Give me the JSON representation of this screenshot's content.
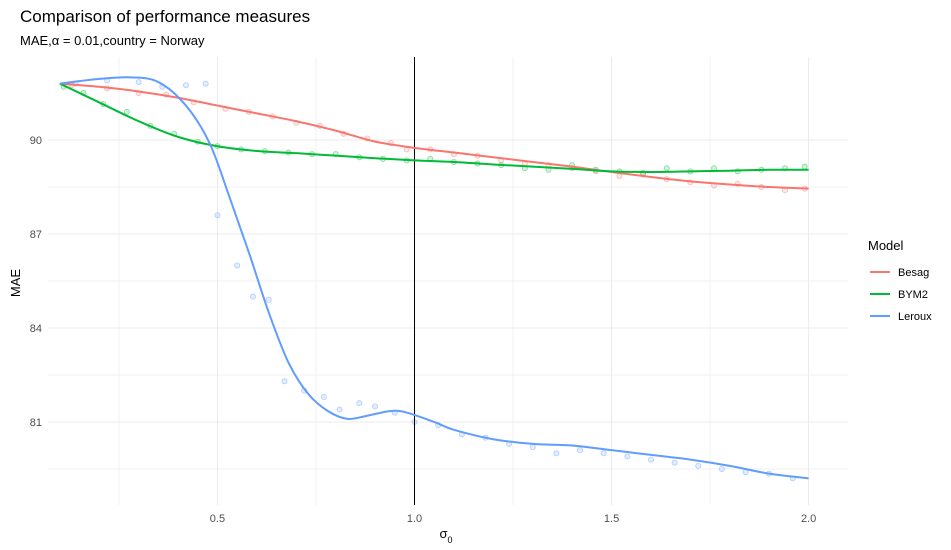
{
  "chart_data": {
    "type": "line",
    "title": "Comparison of performance measures",
    "subtitle": "MAE,α = 0.01,country = Norway",
    "xlabel": "σ",
    "xlabel_subscript": "0",
    "ylabel": "MAE",
    "xlim": [
      0.07,
      2.1
    ],
    "ylim": [
      78.35,
      92.65
    ],
    "x_ticks": [
      0.5,
      1.0,
      1.5,
      2.0
    ],
    "x_tick_labels": [
      "0.5",
      "1.0",
      "1.5",
      "2.0"
    ],
    "y_ticks": [
      81,
      84,
      87,
      90
    ],
    "y_tick_labels": [
      "81",
      "84",
      "87",
      "90"
    ],
    "vline_x": 1.0,
    "grid": true,
    "legend_title": "Model",
    "legend_position": "right",
    "series": [
      {
        "name": "Besag",
        "color": "#F8766D",
        "x": [
          0.1,
          0.2,
          0.3,
          0.4,
          0.5,
          0.6,
          0.7,
          0.8,
          0.9,
          1.0,
          1.1,
          1.2,
          1.3,
          1.4,
          1.5,
          1.6,
          1.7,
          1.8,
          1.9,
          2.0
        ],
        "y": [
          91.8,
          91.7,
          91.55,
          91.35,
          91.1,
          90.85,
          90.6,
          90.3,
          89.95,
          89.75,
          89.6,
          89.45,
          89.3,
          89.15,
          88.98,
          88.82,
          88.68,
          88.58,
          88.5,
          88.45
        ],
        "points": [
          [
            0.13,
            91.75
          ],
          [
            0.22,
            91.65
          ],
          [
            0.3,
            91.5
          ],
          [
            0.37,
            91.45
          ],
          [
            0.44,
            91.2
          ],
          [
            0.52,
            91.0
          ],
          [
            0.58,
            90.9
          ],
          [
            0.64,
            90.75
          ],
          [
            0.7,
            90.55
          ],
          [
            0.76,
            90.45
          ],
          [
            0.82,
            90.2
          ],
          [
            0.88,
            90.05
          ],
          [
            0.94,
            89.9
          ],
          [
            0.98,
            89.7
          ],
          [
            1.04,
            89.7
          ],
          [
            1.1,
            89.55
          ],
          [
            1.16,
            89.5
          ],
          [
            1.22,
            89.35
          ],
          [
            1.28,
            89.25
          ],
          [
            1.34,
            89.2
          ],
          [
            1.4,
            89.1
          ],
          [
            1.46,
            89.0
          ],
          [
            1.52,
            88.85
          ],
          [
            1.58,
            88.9
          ],
          [
            1.64,
            88.75
          ],
          [
            1.7,
            88.65
          ],
          [
            1.76,
            88.55
          ],
          [
            1.82,
            88.6
          ],
          [
            1.88,
            88.5
          ],
          [
            1.94,
            88.4
          ],
          [
            1.99,
            88.45
          ]
        ]
      },
      {
        "name": "BYM2",
        "color": "#00BA38",
        "x": [
          0.1,
          0.2,
          0.3,
          0.4,
          0.5,
          0.6,
          0.7,
          0.8,
          0.9,
          1.0,
          1.1,
          1.2,
          1.3,
          1.4,
          1.5,
          1.6,
          1.7,
          1.8,
          1.9,
          2.0
        ],
        "y": [
          91.8,
          91.2,
          90.6,
          90.1,
          89.8,
          89.65,
          89.58,
          89.5,
          89.42,
          89.35,
          89.3,
          89.22,
          89.15,
          89.08,
          89.0,
          88.98,
          89.0,
          89.02,
          89.05,
          89.05
        ],
        "points": [
          [
            0.11,
            91.7
          ],
          [
            0.16,
            91.5
          ],
          [
            0.21,
            91.15
          ],
          [
            0.27,
            90.9
          ],
          [
            0.33,
            90.45
          ],
          [
            0.39,
            90.2
          ],
          [
            0.45,
            89.95
          ],
          [
            0.5,
            89.8
          ],
          [
            0.56,
            89.7
          ],
          [
            0.62,
            89.65
          ],
          [
            0.68,
            89.6
          ],
          [
            0.74,
            89.55
          ],
          [
            0.8,
            89.55
          ],
          [
            0.86,
            89.45
          ],
          [
            0.92,
            89.4
          ],
          [
            0.98,
            89.35
          ],
          [
            1.04,
            89.4
          ],
          [
            1.1,
            89.3
          ],
          [
            1.16,
            89.25
          ],
          [
            1.22,
            89.2
          ],
          [
            1.28,
            89.1
          ],
          [
            1.34,
            89.05
          ],
          [
            1.4,
            89.2
          ],
          [
            1.46,
            89.05
          ],
          [
            1.52,
            89.0
          ],
          [
            1.58,
            88.95
          ],
          [
            1.64,
            89.1
          ],
          [
            1.7,
            89.0
          ],
          [
            1.76,
            89.1
          ],
          [
            1.82,
            89.0
          ],
          [
            1.88,
            89.05
          ],
          [
            1.94,
            89.1
          ],
          [
            1.99,
            89.15
          ]
        ]
      },
      {
        "name": "Leroux",
        "color": "#619CFF",
        "x": [
          0.1,
          0.2,
          0.28,
          0.35,
          0.42,
          0.48,
          0.53,
          0.58,
          0.63,
          0.68,
          0.73,
          0.78,
          0.83,
          0.88,
          0.94,
          0.98,
          1.05,
          1.1,
          1.2,
          1.3,
          1.4,
          1.5,
          1.6,
          1.7,
          1.8,
          1.9,
          2.0
        ],
        "y": [
          91.8,
          91.95,
          92.0,
          91.85,
          91.1,
          89.9,
          88.2,
          86.4,
          84.5,
          82.9,
          81.9,
          81.35,
          81.1,
          81.2,
          81.35,
          81.3,
          81.0,
          80.75,
          80.45,
          80.3,
          80.25,
          80.1,
          79.95,
          79.8,
          79.6,
          79.35,
          79.2
        ]
      }
    ],
    "scatter_leroux": [
      [
        0.14,
        91.8
      ],
      [
        0.22,
        91.9
      ],
      [
        0.3,
        91.85
      ],
      [
        0.36,
        91.7
      ],
      [
        0.42,
        91.75
      ],
      [
        0.47,
        91.8
      ],
      [
        0.5,
        87.6
      ],
      [
        0.55,
        86.0
      ],
      [
        0.59,
        85.0
      ],
      [
        0.63,
        84.9
      ],
      [
        0.67,
        82.3
      ],
      [
        0.72,
        82.0
      ],
      [
        0.77,
        81.8
      ],
      [
        0.81,
        81.4
      ],
      [
        0.86,
        81.6
      ],
      [
        0.9,
        81.5
      ],
      [
        0.95,
        81.3
      ],
      [
        1.0,
        81.0
      ],
      [
        1.06,
        80.9
      ],
      [
        1.12,
        80.6
      ],
      [
        1.18,
        80.5
      ],
      [
        1.24,
        80.3
      ],
      [
        1.3,
        80.2
      ],
      [
        1.36,
        80.0
      ],
      [
        1.42,
        80.1
      ],
      [
        1.48,
        80.0
      ],
      [
        1.54,
        79.9
      ],
      [
        1.6,
        79.8
      ],
      [
        1.66,
        79.7
      ],
      [
        1.72,
        79.6
      ],
      [
        1.78,
        79.5
      ],
      [
        1.84,
        79.4
      ],
      [
        1.9,
        79.35
      ],
      [
        1.96,
        79.2
      ]
    ]
  }
}
